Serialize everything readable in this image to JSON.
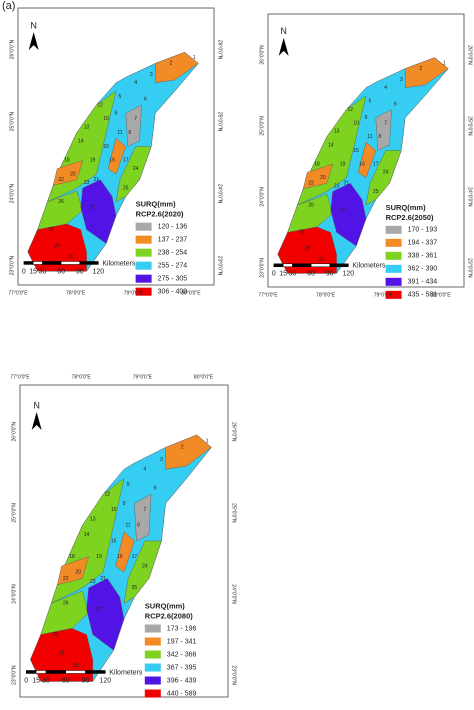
{
  "figure_label": "(a)",
  "panels": [
    {
      "north": "N",
      "legend_title": "SURQ(mm)",
      "scenario": "RCP2.6(2020)",
      "legend": [
        {
          "label": "120 - 136",
          "color": "#a8a8a8"
        },
        {
          "label": "137 - 237",
          "color": "#f28a26"
        },
        {
          "label": "238 - 254",
          "color": "#7ed321"
        },
        {
          "label": "255 - 274",
          "color": "#35cdf2"
        },
        {
          "label": "275 - 305",
          "color": "#5214e6"
        },
        {
          "label": "306 - 409",
          "color": "#f20000"
        }
      ],
      "scale_ticks": [
        "0",
        "15",
        "30",
        "60",
        "90",
        "120"
      ],
      "scale_unit": "Kilometers",
      "lon_labels": [
        "77°0'0\"E",
        "78°0'0\"E",
        "79°0'0\"E",
        "80°0'0\"E"
      ],
      "lat_labels": [
        "26°0'0\"N",
        "25°0'0\"N",
        "24°0'0\"N",
        "23°0'0\"N"
      ],
      "subbasins": [
        "1",
        "2",
        "3",
        "4",
        "5",
        "6",
        "7",
        "8",
        "9",
        "10",
        "11",
        "12",
        "13",
        "14",
        "15",
        "16",
        "17",
        "18",
        "19",
        "20",
        "21",
        "22",
        "23",
        "24",
        "25",
        "26",
        "27",
        "28",
        "29",
        "30"
      ]
    },
    {
      "north": "N",
      "legend_title": "SURQ(mm)",
      "scenario": "RCP2.6(2050)",
      "legend": [
        {
          "label": "170 - 193",
          "color": "#a8a8a8"
        },
        {
          "label": "194 - 337",
          "color": "#f28a26"
        },
        {
          "label": "338 - 361",
          "color": "#7ed321"
        },
        {
          "label": "362 - 390",
          "color": "#35cdf2"
        },
        {
          "label": "391 - 434",
          "color": "#5214e6"
        },
        {
          "label": "435 - 581",
          "color": "#f20000"
        }
      ],
      "scale_ticks": [
        "0",
        "15",
        "30",
        "60",
        "90",
        "120"
      ],
      "scale_unit": "Kilometers",
      "lon_labels": [
        "77°0'0\"E",
        "78°0'0\"E",
        "79°0'0\"E",
        "80°0'0\"E"
      ],
      "lat_labels": [
        "26°0'0\"N",
        "25°0'0\"N",
        "24°0'0\"N",
        "23°0'0\"N"
      ],
      "subbasins": [
        "1",
        "2",
        "3",
        "4",
        "5",
        "6",
        "7",
        "8",
        "9",
        "10",
        "11",
        "12",
        "13",
        "14",
        "15",
        "16",
        "17",
        "18",
        "19",
        "20",
        "21",
        "22",
        "23",
        "24",
        "25",
        "26",
        "27",
        "28",
        "29",
        "30"
      ]
    },
    {
      "north": "N",
      "legend_title": "SURQ(mm)",
      "scenario": "RCP2.6(2080)",
      "legend": [
        {
          "label": "173 - 196",
          "color": "#a8a8a8"
        },
        {
          "label": "197 - 341",
          "color": "#f28a26"
        },
        {
          "label": "342 - 366",
          "color": "#7ed321"
        },
        {
          "label": "367 - 395",
          "color": "#35cdf2"
        },
        {
          "label": "396 - 439",
          "color": "#5214e6"
        },
        {
          "label": "440 - 589",
          "color": "#f20000"
        }
      ],
      "scale_ticks": [
        "0",
        "15",
        "30",
        "60",
        "90",
        "120"
      ],
      "scale_unit": "Kilometers",
      "lon_labels": [
        "77°0'0\"E",
        "78°0'0\"E",
        "79°0'0\"E",
        "80°0'0\"E"
      ],
      "lat_labels": [
        "26°0'0\"N",
        "25°0'0\"N",
        "24°0'0\"N",
        "23°0'0\"N"
      ],
      "subbasins": [
        "1",
        "2",
        "3",
        "4",
        "5",
        "6",
        "7",
        "8",
        "9",
        "10",
        "11",
        "12",
        "13",
        "14",
        "15",
        "16",
        "17",
        "18",
        "19",
        "20",
        "21",
        "22",
        "23",
        "24",
        "25",
        "26",
        "27",
        "28",
        "29",
        "30"
      ]
    }
  ]
}
